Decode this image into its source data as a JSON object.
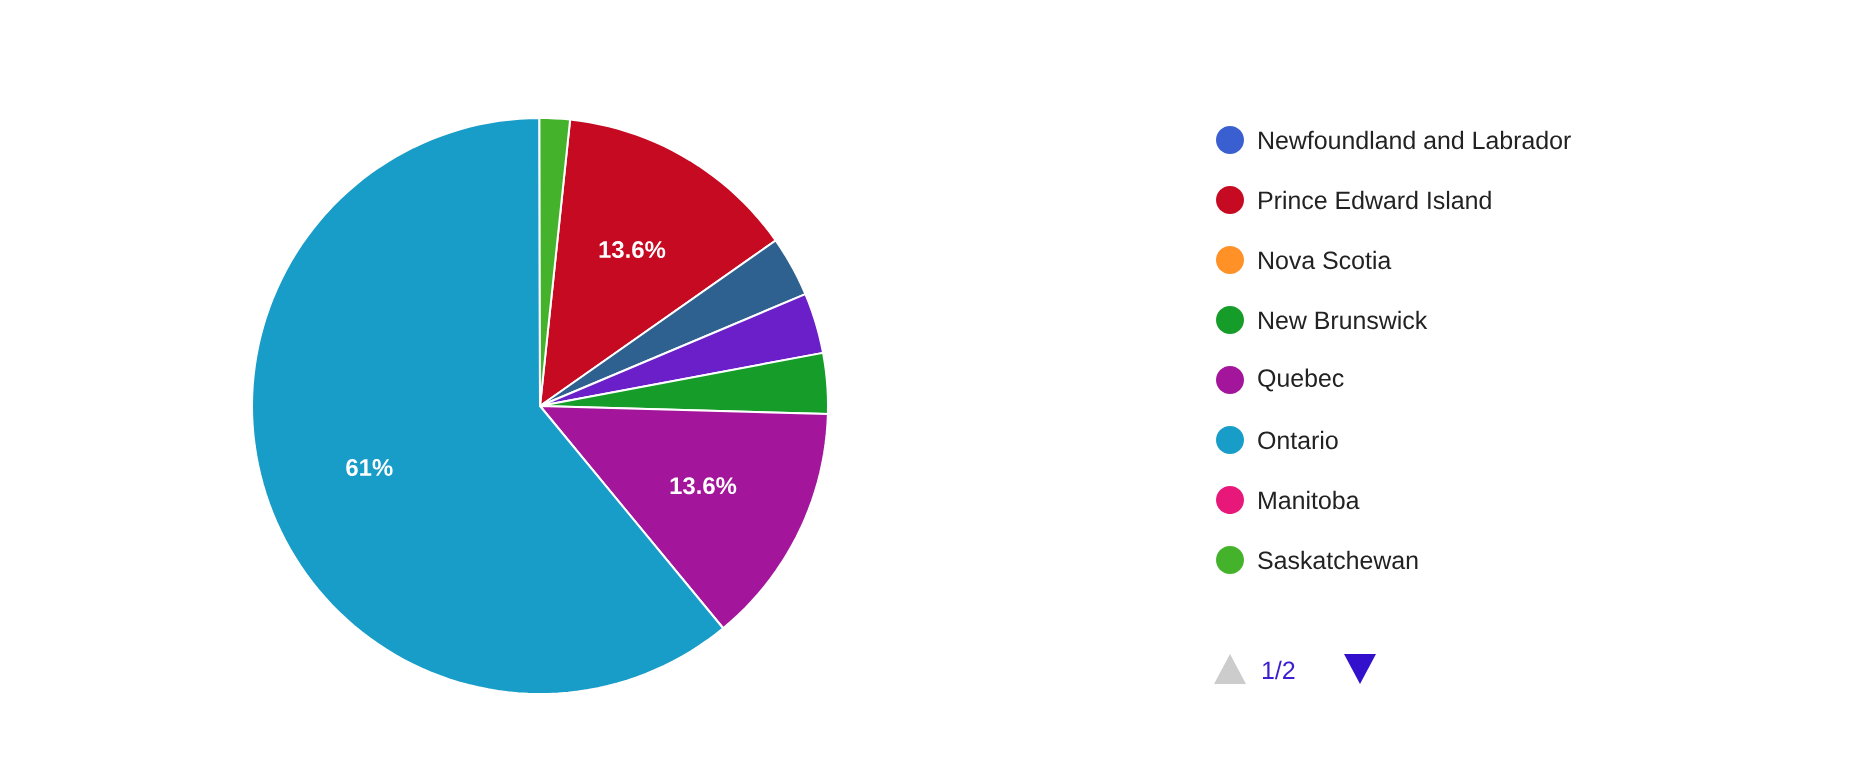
{
  "chart_data": {
    "type": "pie",
    "categories": [
      "Newfoundland and Labrador",
      "Prince Edward Island",
      null,
      null,
      "Nova Scotia",
      "New Brunswick",
      "Quebec",
      "Ontario",
      "Manitoba",
      "Saskatchewan"
    ],
    "values": [
      0,
      13.6,
      3.4,
      3.4,
      0,
      3.4,
      13.6,
      61,
      0,
      1.7
    ],
    "colors": [
      "#3a5fd0",
      "#c60a22",
      "#2e6190",
      "#6a1fc8",
      "#ff9126",
      "#169c28",
      "#a3159a",
      "#189cc8",
      "#e8187a",
      "#45b22b"
    ],
    "value_labels": [
      null,
      "13.6%",
      null,
      null,
      null,
      null,
      "13.6%",
      "61%",
      null,
      null
    ],
    "legend": "right",
    "annotations": [
      "1/2"
    ]
  }
}
